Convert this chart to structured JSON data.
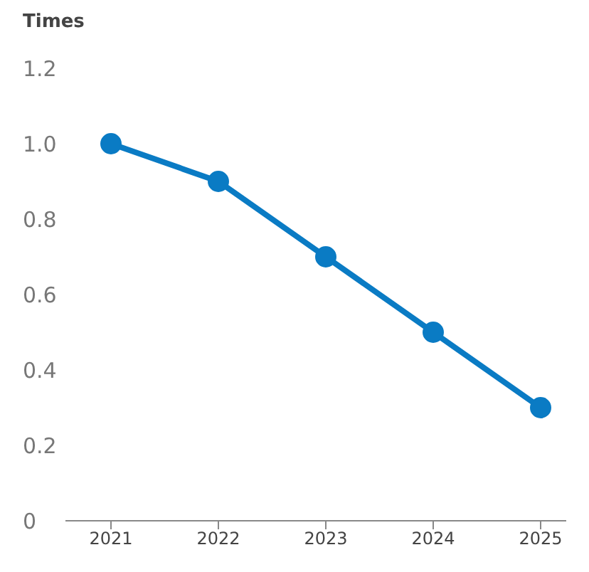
{
  "chart_data": {
    "type": "line",
    "ylabel": "Times",
    "categories": [
      "2021",
      "2022",
      "2023",
      "2024",
      "2025"
    ],
    "series": [
      {
        "color": "#0a7bc4",
        "values": [
          1.0,
          0.9,
          0.7,
          0.5,
          0.3
        ]
      }
    ],
    "ylim": [
      0,
      1.2
    ],
    "yticks": [
      {
        "value": 0,
        "label": "0"
      },
      {
        "value": 0.2,
        "label": "0.2"
      },
      {
        "value": 0.4,
        "label": "0.4"
      },
      {
        "value": 0.6,
        "label": "0.6"
      },
      {
        "value": 0.8,
        "label": "0.8"
      },
      {
        "value": 1,
        "label": "1.0"
      },
      {
        "value": 1.2,
        "label": "1.2"
      }
    ],
    "grid": false,
    "legend": false,
    "marker": "circle",
    "line_style": "solid"
  }
}
